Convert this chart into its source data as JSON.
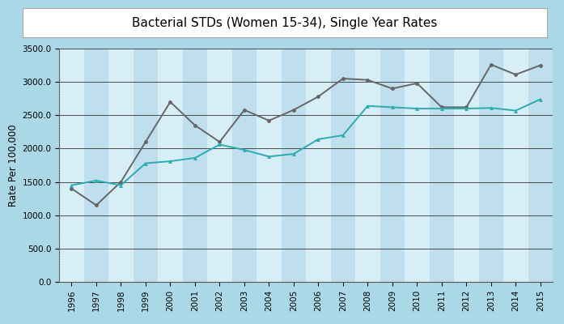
{
  "title": "Bacterial STDs (Women 15-34), Single Year Rates",
  "ylabel": "Rate Per 100,000",
  "years": [
    1996,
    1997,
    1998,
    1999,
    2000,
    2001,
    2002,
    2003,
    2004,
    2005,
    2006,
    2007,
    2008,
    2009,
    2010,
    2011,
    2012,
    2013,
    2014,
    2015
  ],
  "series_gray": [
    1400,
    1150,
    1500,
    2100,
    2700,
    2350,
    2100,
    2580,
    2420,
    2580,
    2780,
    3050,
    3030,
    2900,
    2980,
    2620,
    2620,
    3260,
    3110,
    3250
  ],
  "series_teal": [
    1450,
    1520,
    1450,
    1780,
    1810,
    1860,
    2060,
    1980,
    1880,
    1920,
    2140,
    2200,
    2640,
    2620,
    2600,
    2600,
    2600,
    2610,
    2570,
    2740
  ],
  "gray_color": "#666666",
  "teal_color": "#29adb0",
  "bg_outer": "#aad8e6",
  "bg_plot_even": "#d8eef6",
  "bg_plot_odd": "#bfdfef",
  "grid_color": "#333333",
  "ylim": [
    0,
    3500
  ],
  "yticks": [
    0.0,
    500.0,
    1000.0,
    1500.0,
    2000.0,
    2500.0,
    3000.0,
    3500.0
  ],
  "title_fontsize": 11,
  "axis_label_fontsize": 8.5,
  "tick_fontsize": 7.5
}
